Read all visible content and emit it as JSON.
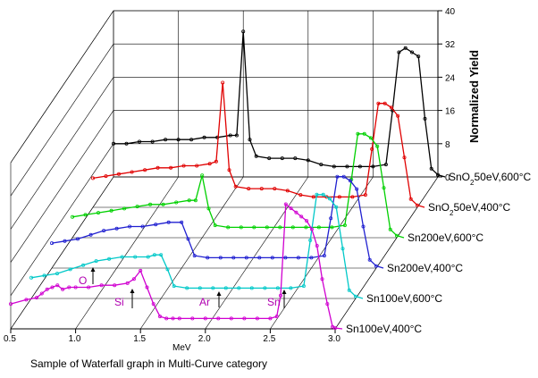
{
  "chart_data": {
    "type": "line",
    "style": "waterfall-3d",
    "xlabel": "MeV",
    "ylabel": "Normalized Yield",
    "xlim": [
      0.5,
      3.0
    ],
    "ylim": [
      0,
      40
    ],
    "x_ticks": [
      "0.5",
      "1.0",
      "1.5",
      "2.0",
      "2.5",
      "3.0"
    ],
    "y_ticks": [
      "0",
      "8",
      "16",
      "24",
      "32",
      "40"
    ],
    "grid": true,
    "caption": "Sample of Waterfall graph in Multi-Curve category",
    "annotations": [
      {
        "text": "O",
        "color": "#b000b0"
      },
      {
        "text": "Si",
        "color": "#b000b0"
      },
      {
        "text": "Ar",
        "color": "#b000b0"
      },
      {
        "text": "Sn",
        "color": "#b000b0"
      }
    ],
    "series": [
      {
        "name": "Sn100eV,400°C",
        "color": "#d000d0",
        "x": [
          0.5,
          0.62,
          0.7,
          0.74,
          0.78,
          0.82,
          0.86,
          0.9,
          0.95,
          1.0,
          1.1,
          1.2,
          1.3,
          1.4,
          1.45,
          1.5,
          1.55,
          1.6,
          1.65,
          1.7,
          1.75,
          1.8,
          1.9,
          2.0,
          2.1,
          2.2,
          2.3,
          2.4,
          2.5,
          2.55,
          2.58,
          2.62,
          2.66,
          2.7,
          2.74,
          2.78,
          2.82,
          2.86,
          2.9,
          2.94,
          2.98,
          3.0
        ],
        "y": [
          6,
          7,
          7.5,
          8.5,
          9.5,
          10,
          10.5,
          9.5,
          10,
          10,
          10,
          10.5,
          10.5,
          11,
          12,
          14,
          10,
          6,
          3,
          2.5,
          2.5,
          2.5,
          2.5,
          2.5,
          2.5,
          2.5,
          2.5,
          2.5,
          2.5,
          3,
          8,
          30,
          29,
          28,
          27,
          26,
          24,
          20,
          12,
          6,
          0.5,
          0.2
        ]
      },
      {
        "name": "Sn100eV,600°C",
        "color": "#00c8c8",
        "x": [
          0.5,
          0.6,
          0.7,
          0.8,
          0.9,
          1.0,
          1.1,
          1.2,
          1.3,
          1.4,
          1.45,
          1.5,
          1.55,
          1.6,
          1.7,
          1.8,
          1.9,
          2.0,
          2.1,
          2.2,
          2.3,
          2.4,
          2.5,
          2.6,
          2.65,
          2.7,
          2.75,
          2.8,
          2.85,
          2.9,
          2.95,
          3.0
        ],
        "y": [
          5,
          5.5,
          6,
          7,
          8,
          9,
          9.5,
          10,
          10,
          10,
          10.5,
          10.5,
          7,
          3,
          2.5,
          2.5,
          2.5,
          2.5,
          2.5,
          2.5,
          2.5,
          2.5,
          2.5,
          3,
          14,
          25,
          25,
          24,
          22,
          12,
          2,
          0.5
        ]
      },
      {
        "name": "Sn200eV,400°C",
        "color": "#2020d0",
        "x": [
          0.5,
          0.6,
          0.7,
          0.8,
          0.9,
          1.0,
          1.1,
          1.2,
          1.3,
          1.4,
          1.5,
          1.55,
          1.6,
          1.7,
          1.8,
          1.9,
          2.0,
          2.1,
          2.2,
          2.3,
          2.4,
          2.5,
          2.6,
          2.65,
          2.7,
          2.75,
          2.8,
          2.85,
          2.9,
          2.95,
          3.0
        ],
        "y": [
          6,
          6.5,
          7,
          8,
          9,
          9.5,
          10,
          10,
          10.5,
          11,
          11,
          7,
          3,
          2.5,
          2.5,
          2.5,
          2.5,
          2.5,
          2.5,
          2.5,
          2.5,
          2.5,
          3,
          12,
          22,
          22,
          21,
          19,
          10,
          2,
          0.5
        ]
      },
      {
        "name": "Sn200eV,600°C",
        "color": "#00d000",
        "x": [
          0.5,
          0.6,
          0.7,
          0.8,
          0.9,
          1.0,
          1.1,
          1.2,
          1.3,
          1.4,
          1.45,
          1.5,
          1.55,
          1.6,
          1.7,
          1.8,
          1.9,
          2.0,
          2.1,
          2.2,
          2.3,
          2.4,
          2.5,
          2.6,
          2.65,
          2.7,
          2.75,
          2.8,
          2.85,
          2.9,
          2.95,
          3.0
        ],
        "y": [
          5,
          5.5,
          6,
          6.5,
          7,
          7.5,
          8,
          8,
          8.5,
          9,
          9,
          15,
          7,
          3,
          2.5,
          2.5,
          2.5,
          2.5,
          2.5,
          2.5,
          2.5,
          2.5,
          2.5,
          3,
          14,
          25,
          25,
          24,
          22,
          12,
          2,
          0.5
        ]
      },
      {
        "name": "SnO2 50eV,400°C",
        "color": "#e00000",
        "x": [
          0.5,
          0.6,
          0.7,
          0.8,
          0.9,
          1.0,
          1.1,
          1.2,
          1.3,
          1.4,
          1.45,
          1.5,
          1.55,
          1.6,
          1.7,
          1.8,
          1.9,
          2.0,
          2.1,
          2.2,
          2.3,
          2.4,
          2.5,
          2.6,
          2.65,
          2.7,
          2.75,
          2.8,
          2.85,
          2.9,
          2.95,
          3.0
        ],
        "y": [
          7,
          7.5,
          8,
          8.5,
          9,
          9.5,
          9.5,
          10,
          10,
          10.5,
          11,
          30,
          9,
          5,
          4.5,
          4.5,
          4.5,
          4,
          3,
          2.5,
          2.5,
          2.5,
          2.5,
          3,
          14,
          25,
          25,
          24,
          22,
          12,
          2,
          0.5
        ]
      },
      {
        "name": "SnO2 50eV,600°C",
        "color": "#000000",
        "x": [
          0.5,
          0.6,
          0.7,
          0.8,
          0.9,
          1.0,
          1.1,
          1.2,
          1.3,
          1.4,
          1.45,
          1.5,
          1.55,
          1.6,
          1.7,
          1.8,
          1.9,
          2.0,
          2.1,
          2.2,
          2.3,
          2.4,
          2.5,
          2.6,
          2.65,
          2.7,
          2.75,
          2.8,
          2.85,
          2.9,
          2.95,
          3.0
        ],
        "y": [
          8,
          8,
          8.5,
          8.5,
          9,
          9,
          9,
          9.5,
          9.5,
          10,
          10,
          35,
          9,
          5,
          4.5,
          4.5,
          4.5,
          4,
          3,
          2.5,
          2.5,
          2.5,
          2.5,
          3,
          16,
          30,
          31,
          30,
          29,
          14,
          2,
          0.5
        ]
      }
    ]
  }
}
